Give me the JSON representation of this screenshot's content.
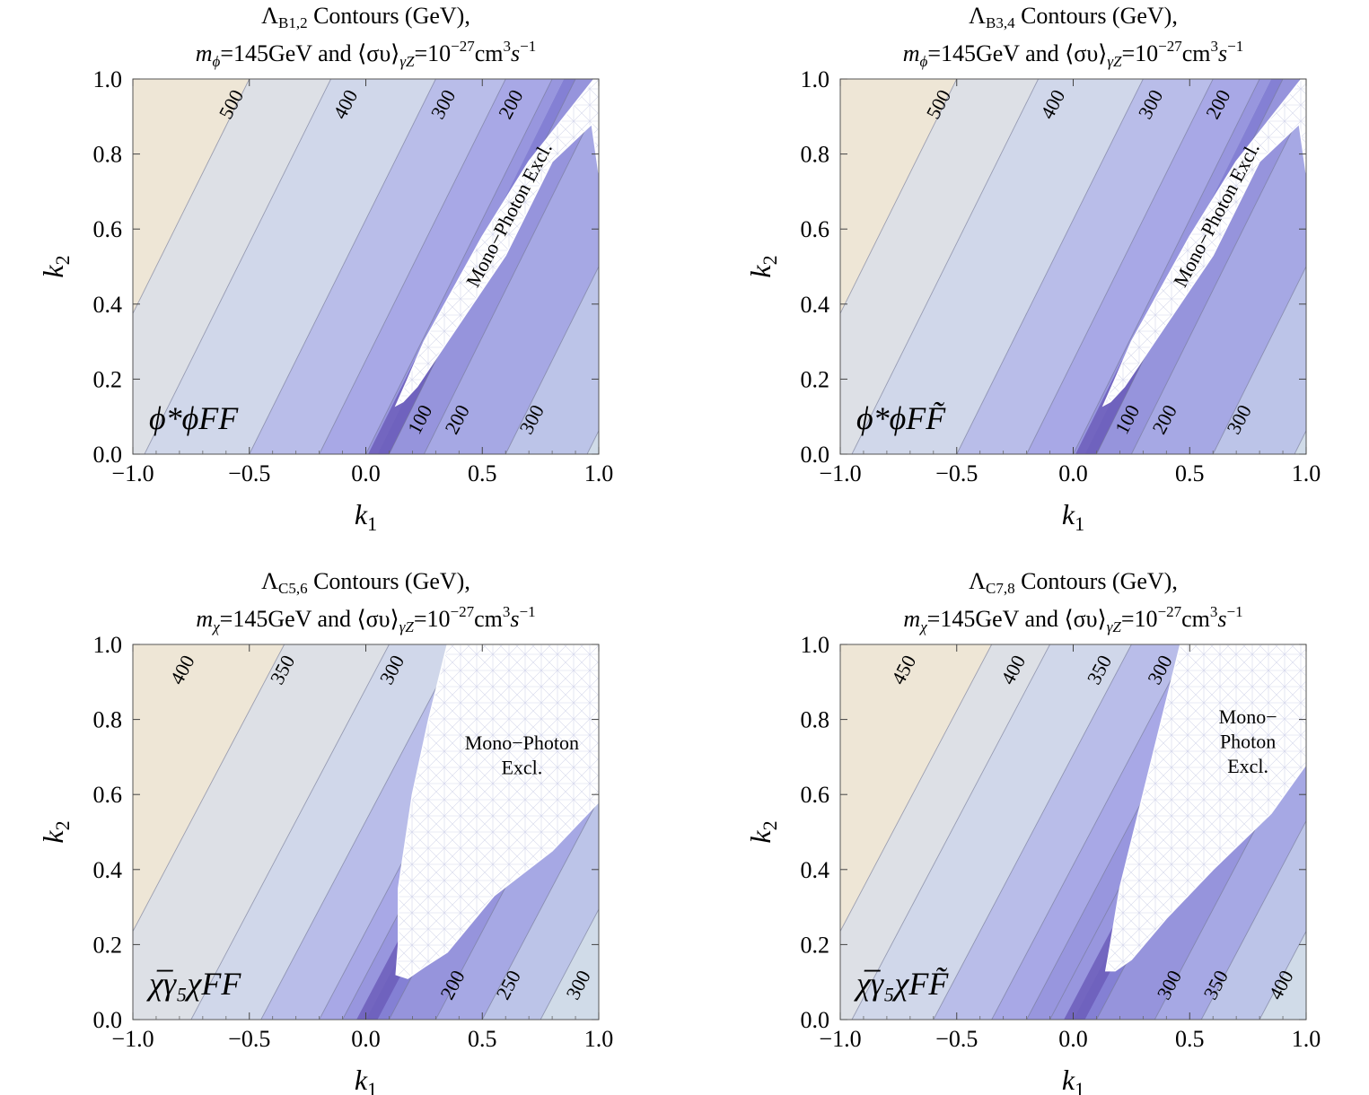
{
  "chart_data": [
    {
      "type": "contour",
      "title": "Λ_B1,2 Contours (GeV),",
      "title_symbol": "Λ",
      "title_sub": "B1,2",
      "title_rest": " Contours (GeV),",
      "subtitle_mass_symbol": "m",
      "subtitle_mass_sub": "ϕ",
      "subtitle_text": "=145GeV and ⟨συ⟩",
      "subtitle_sub": "γZ",
      "subtitle_tail": "=10",
      "subtitle_exp": "−27",
      "subtitle_unit": "cm",
      "subtitle_unit_exp": "3",
      "subtitle_s": "s",
      "subtitle_s_exp": "−1",
      "operator_label": "ϕ*ϕFF",
      "xlabel": "k1",
      "ylabel": "k2",
      "xlim": [
        -1.0,
        1.0
      ],
      "ylim": [
        0.0,
        1.0
      ],
      "xticks": [
        "−1.0",
        "−0.5",
        "0.0",
        "0.5",
        "1.0"
      ],
      "yticks": [
        "0.0",
        "0.2",
        "0.4",
        "0.6",
        "0.8",
        "1.0"
      ],
      "minimum_line": {
        "k1_at_k2_0": 0.05,
        "k1_per_k2": 0.8
      },
      "bands_left_k1_at_k2_0": [
        -1.3,
        -0.95,
        -0.5,
        -0.2,
        0.0
      ],
      "bands_right_k1_at_k2_0": [
        0.1,
        0.25,
        0.6,
        0.95
      ],
      "contour_labels": [
        {
          "text": "500",
          "k1": -0.57,
          "k2": 0.93
        },
        {
          "text": "400",
          "k1": -0.08,
          "k2": 0.93
        },
        {
          "text": "300",
          "k1": 0.34,
          "k2": 0.93
        },
        {
          "text": "200",
          "k1": 0.63,
          "k2": 0.93
        },
        {
          "text": "100",
          "k1": 0.24,
          "k2": 0.09
        },
        {
          "text": "200",
          "k1": 0.4,
          "k2": 0.09
        },
        {
          "text": "300",
          "k1": 0.72,
          "k2": 0.09
        }
      ],
      "exclusion": {
        "label": [
          "Mono−Photon Excl."
        ],
        "label_rotated": true,
        "label_k1": 0.64,
        "label_k2": 0.63,
        "label_angle": -62,
        "region": [
          [
            0.13,
            0.13
          ],
          [
            0.18,
            0.2
          ],
          [
            0.25,
            0.3
          ],
          [
            0.5,
            0.58
          ],
          [
            0.7,
            0.78
          ],
          [
            0.98,
            1.0
          ],
          [
            1.0,
            1.0
          ],
          [
            1.0,
            0.75
          ],
          [
            0.97,
            0.88
          ],
          [
            0.8,
            0.78
          ],
          [
            0.6,
            0.53
          ],
          [
            0.35,
            0.3
          ],
          [
            0.22,
            0.18
          ],
          [
            0.16,
            0.14
          ]
        ]
      }
    },
    {
      "type": "contour",
      "title": "Λ_B3,4 Contours (GeV),",
      "title_symbol": "Λ",
      "title_sub": "B3,4",
      "title_rest": " Contours (GeV),",
      "subtitle_mass_symbol": "m",
      "subtitle_mass_sub": "ϕ",
      "subtitle_text": "=145GeV and ⟨συ⟩",
      "subtitle_sub": "γZ",
      "subtitle_tail": "=10",
      "subtitle_exp": "−27",
      "subtitle_unit": "cm",
      "subtitle_unit_exp": "3",
      "subtitle_s": "s",
      "subtitle_s_exp": "−1",
      "operator_label": "ϕ*ϕFF̃",
      "xlabel": "k1",
      "ylabel": "k2",
      "xlim": [
        -1.0,
        1.0
      ],
      "ylim": [
        0.0,
        1.0
      ],
      "xticks": [
        "−1.0",
        "−0.5",
        "0.0",
        "0.5",
        "1.0"
      ],
      "yticks": [
        "0.0",
        "0.2",
        "0.4",
        "0.6",
        "0.8",
        "1.0"
      ],
      "minimum_line": {
        "k1_at_k2_0": 0.05,
        "k1_per_k2": 0.8
      },
      "bands_left_k1_at_k2_0": [
        -1.3,
        -0.95,
        -0.5,
        -0.2,
        0.0
      ],
      "bands_right_k1_at_k2_0": [
        0.1,
        0.25,
        0.6,
        0.95
      ],
      "contour_labels": [
        {
          "text": "500",
          "k1": -0.57,
          "k2": 0.93
        },
        {
          "text": "400",
          "k1": -0.08,
          "k2": 0.93
        },
        {
          "text": "300",
          "k1": 0.34,
          "k2": 0.93
        },
        {
          "text": "200",
          "k1": 0.63,
          "k2": 0.93
        },
        {
          "text": "100",
          "k1": 0.24,
          "k2": 0.09
        },
        {
          "text": "200",
          "k1": 0.4,
          "k2": 0.09
        },
        {
          "text": "300",
          "k1": 0.72,
          "k2": 0.09
        }
      ],
      "exclusion": {
        "label": [
          "Mono−Photon Excl."
        ],
        "label_rotated": true,
        "label_k1": 0.64,
        "label_k2": 0.63,
        "label_angle": -62,
        "region": [
          [
            0.13,
            0.13
          ],
          [
            0.18,
            0.2
          ],
          [
            0.25,
            0.3
          ],
          [
            0.5,
            0.58
          ],
          [
            0.7,
            0.78
          ],
          [
            0.98,
            1.0
          ],
          [
            1.0,
            1.0
          ],
          [
            1.0,
            0.75
          ],
          [
            0.97,
            0.88
          ],
          [
            0.8,
            0.78
          ],
          [
            0.6,
            0.53
          ],
          [
            0.35,
            0.3
          ],
          [
            0.22,
            0.18
          ],
          [
            0.16,
            0.14
          ]
        ]
      }
    },
    {
      "type": "contour",
      "title": "Λ_C5,6 Contours (GeV),",
      "title_symbol": "Λ",
      "title_sub": "C5,6",
      "title_rest": " Contours (GeV),",
      "subtitle_mass_symbol": "m",
      "subtitle_mass_sub": "χ",
      "subtitle_text": "=145GeV and ⟨συ⟩",
      "subtitle_sub": "γZ",
      "subtitle_tail": "=10",
      "subtitle_exp": "−27",
      "subtitle_unit": "cm",
      "subtitle_unit_exp": "3",
      "subtitle_s": "s",
      "subtitle_s_exp": "−1",
      "operator_label": "χ̅γ₅χFF",
      "xlabel": "k1",
      "ylabel": "k2",
      "xlim": [
        -1.0,
        1.0
      ],
      "ylim": [
        0.0,
        1.0
      ],
      "xticks": [
        "−1.0",
        "−0.5",
        "0.0",
        "0.5",
        "1.0"
      ],
      "yticks": [
        "0.0",
        "0.2",
        "0.4",
        "0.6",
        "0.8",
        "1.0"
      ],
      "minimum_line": {
        "k1_at_k2_0": 0.0,
        "k1_per_k2": 0.85
      },
      "bands_left_k1_at_k2_0": [
        -1.2,
        -0.75,
        -0.45,
        -0.2,
        -0.1
      ],
      "bands_right_k1_at_k2_0": [
        0.1,
        0.3,
        0.5,
        0.75
      ],
      "contour_labels": [
        {
          "text": "400",
          "k1": -0.78,
          "k2": 0.93
        },
        {
          "text": "350",
          "k1": -0.35,
          "k2": 0.93
        },
        {
          "text": "300",
          "k1": 0.12,
          "k2": 0.93
        },
        {
          "text": "200",
          "k1": 0.38,
          "k2": 0.09
        },
        {
          "text": "250",
          "k1": 0.62,
          "k2": 0.09
        },
        {
          "text": "300",
          "k1": 0.92,
          "k2": 0.09
        }
      ],
      "exclusion": {
        "label": [
          "Mono−Photon",
          "Excl."
        ],
        "label_rotated": false,
        "label_k1": 0.67,
        "label_k2": 0.72,
        "label_angle": 0,
        "region": [
          [
            0.13,
            0.12
          ],
          [
            0.14,
            0.2
          ],
          [
            0.14,
            0.35
          ],
          [
            0.2,
            0.6
          ],
          [
            0.27,
            0.8
          ],
          [
            0.35,
            1.0
          ],
          [
            1.0,
            1.0
          ],
          [
            1.0,
            0.58
          ],
          [
            0.8,
            0.45
          ],
          [
            0.55,
            0.33
          ],
          [
            0.35,
            0.18
          ],
          [
            0.25,
            0.14
          ],
          [
            0.18,
            0.11
          ]
        ]
      }
    },
    {
      "type": "contour",
      "title": "Λ_C7,8 Contours (GeV),",
      "title_symbol": "Λ",
      "title_sub": "C7,8",
      "title_rest": " Contours (GeV),",
      "subtitle_mass_symbol": "m",
      "subtitle_mass_sub": "χ",
      "subtitle_text": "=145GeV and ⟨συ⟩",
      "subtitle_sub": "γZ",
      "subtitle_tail": "=10",
      "subtitle_exp": "−27",
      "subtitle_unit": "cm",
      "subtitle_unit_exp": "3",
      "subtitle_s": "s",
      "subtitle_s_exp": "−1",
      "operator_label": "χ̅γ₅χFF̃",
      "xlabel": "k1",
      "ylabel": "k2",
      "xlim": [
        -1.0,
        1.0
      ],
      "ylim": [
        0.0,
        1.0
      ],
      "xticks": [
        "−1.0",
        "−0.5",
        "0.0",
        "0.5",
        "1.0"
      ],
      "yticks": [
        "0.0",
        "0.2",
        "0.4",
        "0.6",
        "0.8",
        "1.0"
      ],
      "minimum_line": {
        "k1_at_k2_0": 0.0,
        "k1_per_k2": 0.85
      },
      "bands_left_k1_at_k2_0": [
        -1.2,
        -0.95,
        -0.6,
        -0.35,
        -0.2,
        -0.1
      ],
      "bands_right_k1_at_k2_0": [
        0.1,
        0.35,
        0.55,
        0.8
      ],
      "contour_labels": [
        {
          "text": "450",
          "k1": -0.72,
          "k2": 0.93
        },
        {
          "text": "400",
          "k1": -0.25,
          "k2": 0.93
        },
        {
          "text": "350",
          "k1": 0.12,
          "k2": 0.93
        },
        {
          "text": "300",
          "k1": 0.38,
          "k2": 0.93
        },
        {
          "text": "300",
          "k1": 0.42,
          "k2": 0.09
        },
        {
          "text": "350",
          "k1": 0.62,
          "k2": 0.09
        },
        {
          "text": "400",
          "k1": 0.9,
          "k2": 0.09
        }
      ],
      "exclusion": {
        "label": [
          "Mono−",
          "Photon",
          "Excl."
        ],
        "label_rotated": false,
        "label_k1": 0.75,
        "label_k2": 0.79,
        "label_angle": 0,
        "region": [
          [
            0.14,
            0.13
          ],
          [
            0.16,
            0.2
          ],
          [
            0.2,
            0.35
          ],
          [
            0.3,
            0.6
          ],
          [
            0.4,
            0.85
          ],
          [
            0.46,
            1.0
          ],
          [
            1.0,
            1.0
          ],
          [
            1.0,
            0.68
          ],
          [
            0.85,
            0.55
          ],
          [
            0.6,
            0.4
          ],
          [
            0.4,
            0.27
          ],
          [
            0.25,
            0.16
          ],
          [
            0.18,
            0.13
          ]
        ]
      }
    }
  ]
}
